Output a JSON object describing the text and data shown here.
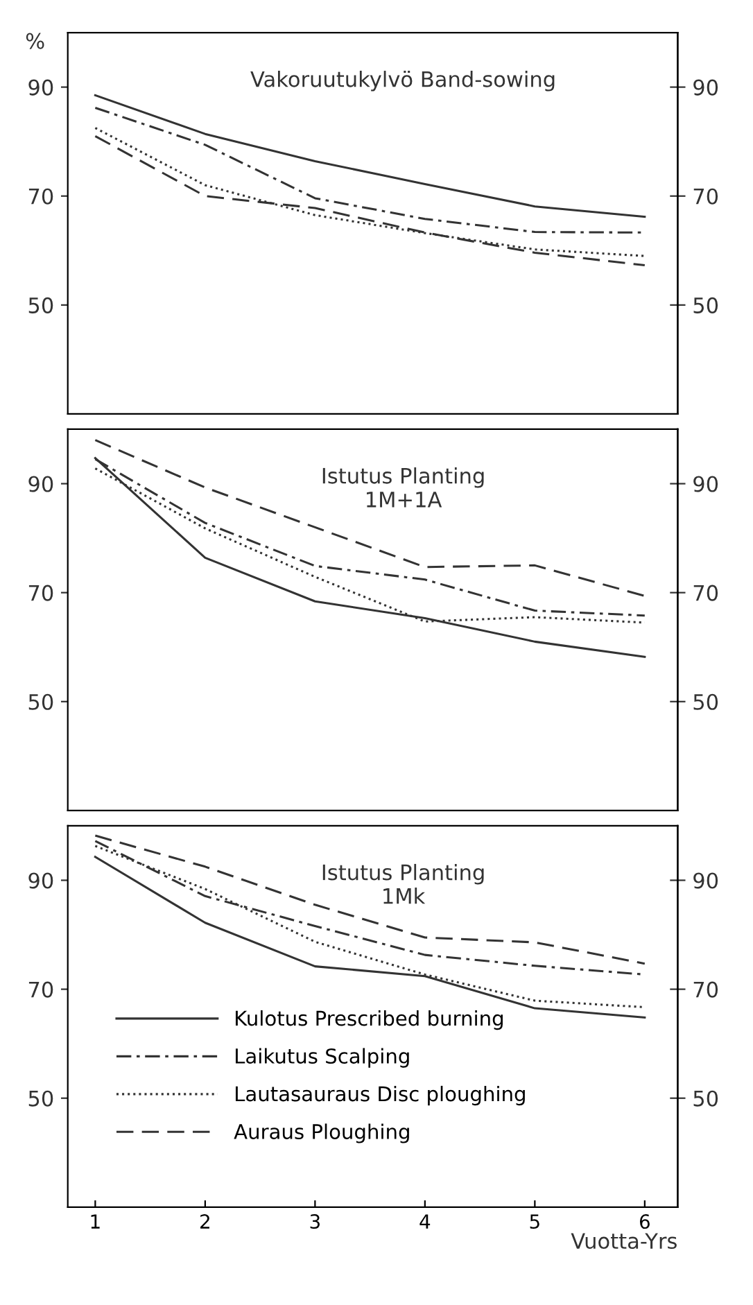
{
  "chart_data": [
    {
      "type": "line",
      "title": "Vakoruutukylvö Band-sowing",
      "ylabel": "%",
      "x": [
        1,
        2,
        3,
        4,
        5,
        6
      ],
      "xlim": [
        0.75,
        6.3
      ],
      "ylim": [
        30,
        100
      ],
      "yticks": [
        50,
        70,
        90
      ],
      "y2lim": [
        30,
        100
      ],
      "y2ticks": [
        50,
        70,
        90
      ],
      "tick_labels": "y",
      "grid": false,
      "legend": false,
      "series": [
        {
          "color": "#333333",
          "line_style": "solid",
          "values": [
            88.5,
            81.4,
            76.4,
            72.2,
            68.1,
            66.2
          ]
        },
        {
          "color": "#333333",
          "line_style": "dashdot",
          "values": [
            86.2,
            79.4,
            69.6,
            65.8,
            63.4,
            63.3
          ]
        },
        {
          "color": "#333333",
          "line_style": "dotted",
          "values": [
            82.5,
            72.0,
            66.5,
            63.2,
            60.2,
            59.0
          ]
        },
        {
          "color": "#333333",
          "line_style": "dashed",
          "values": [
            81.0,
            70.0,
            67.8,
            63.3,
            59.6,
            57.3
          ]
        }
      ]
    },
    {
      "type": "line",
      "title": "Istutus Planting\n1M+1A",
      "x": [
        1,
        2,
        3,
        4,
        5,
        6
      ],
      "xlim": [
        0.75,
        6.3
      ],
      "ylim": [
        30,
        100
      ],
      "yticks": [
        50,
        70,
        90
      ],
      "y2lim": [
        30,
        100
      ],
      "y2ticks": [
        50,
        70,
        90
      ],
      "tick_labels": "y",
      "grid": false,
      "legend": false,
      "series": [
        {
          "color": "#333333",
          "line_style": "solid",
          "values": [
            94.7,
            76.4,
            68.4,
            65.3,
            61.0,
            58.2
          ]
        },
        {
          "color": "#333333",
          "line_style": "dashdot",
          "values": [
            94.5,
            82.8,
            74.9,
            72.4,
            66.7,
            65.8
          ]
        },
        {
          "color": "#333333",
          "line_style": "dotted",
          "values": [
            92.8,
            81.8,
            72.9,
            64.7,
            65.5,
            64.5
          ]
        },
        {
          "color": "#333333",
          "line_style": "dashed",
          "values": [
            98.0,
            89.3,
            82.0,
            74.7,
            75.0,
            69.4
          ]
        }
      ]
    },
    {
      "type": "line",
      "title": "Istutus Planting\n1Mk",
      "xlabel": "Vuotta-Yrs",
      "x": [
        1,
        2,
        3,
        4,
        5,
        6
      ],
      "xlim": [
        0.75,
        6.3
      ],
      "xticks": [
        1,
        2,
        3,
        4,
        5,
        6
      ],
      "ylim": [
        30,
        100
      ],
      "yticks": [
        50,
        70,
        90
      ],
      "y2lim": [
        30,
        100
      ],
      "y2ticks": [
        50,
        70,
        90
      ],
      "grid": false,
      "legend": "bottom left",
      "series": [
        {
          "name": "Kulotus Prescribed burning",
          "color": "#333333",
          "line_style": "solid",
          "values": [
            94.3,
            82.2,
            74.2,
            72.4,
            66.5,
            64.8
          ]
        },
        {
          "name": "Laikutus Scalping",
          "color": "#333333",
          "line_style": "dashdot",
          "values": [
            97.2,
            87.1,
            81.6,
            76.3,
            74.3,
            72.7
          ]
        },
        {
          "name": "Lautasauraus Disc ploughing",
          "color": "#333333",
          "line_style": "dotted",
          "values": [
            96.3,
            88.4,
            78.7,
            72.7,
            67.9,
            66.7
          ]
        },
        {
          "name": "Auraus Ploughing",
          "color": "#333333",
          "line_style": "dashed",
          "values": [
            98.2,
            92.5,
            85.5,
            79.5,
            78.6,
            74.7
          ]
        }
      ]
    }
  ]
}
